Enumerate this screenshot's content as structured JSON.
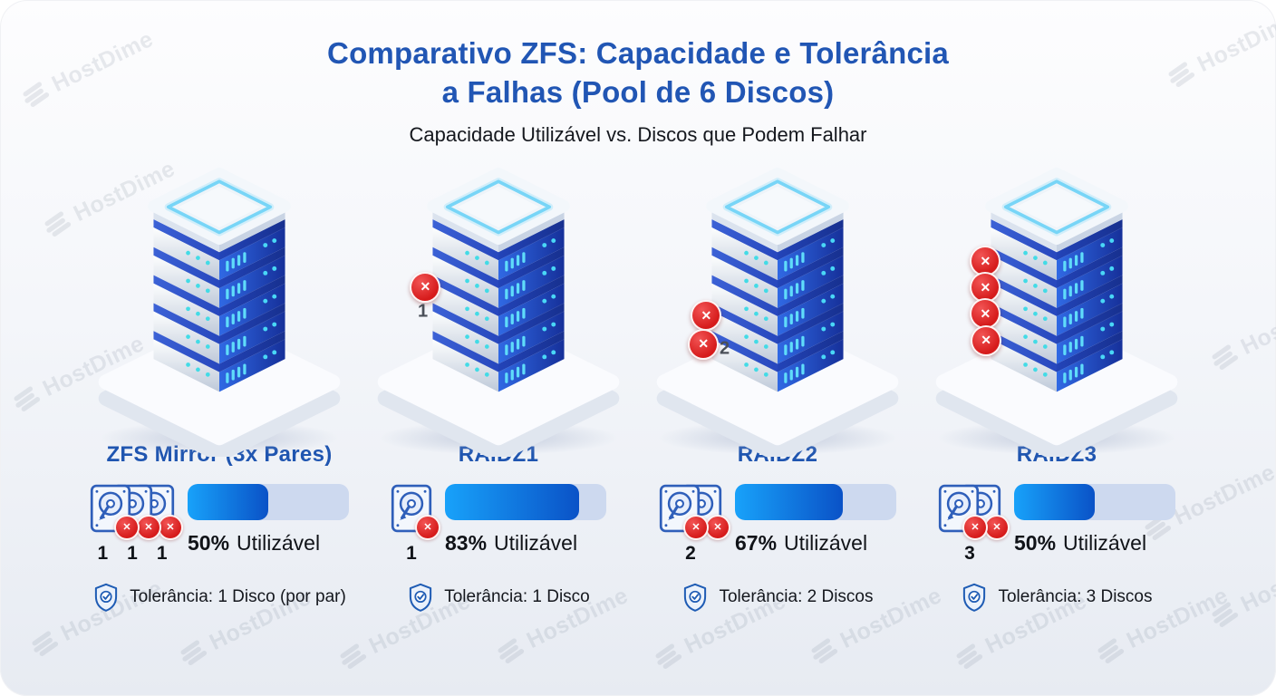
{
  "title": {
    "line1": "Comparativo ZFS: Capacidade e Tolerância",
    "line2": "a Falhas (Pool de 6 Discos)",
    "full": "Comparativo ZFS: Capacidade e Tolerância a Falhas (Pool de 6 Discos)"
  },
  "subtitle": "Capacidade Utilizável vs. Discos que Podem Falhar",
  "watermark": {
    "text": "HostDime"
  },
  "colors": {
    "title_blue": "#2156b4",
    "label_blue": "#1f55b0",
    "bar_fill_start": "#18a2fa",
    "bar_fill_end": "#0a52c7",
    "bar_track": "#cdd9ef",
    "failure_red": "#d61b1b",
    "icon_outline_blue": "#2f5fba"
  },
  "chart_data": {
    "type": "bar",
    "title": "Comparativo ZFS: Capacidade e Tolerância a Falhas (Pool de 6 Discos)",
    "subtitle": "Capacidade Utilizável vs. Discos que Podem Falhar",
    "categories": [
      "ZFS Mirror (3x Pares)",
      "RAIDZ1",
      "RAIDZ2",
      "RAIDZ3"
    ],
    "series": [
      {
        "name": "Capacidade Utilizável (%)",
        "values": [
          50,
          83,
          67,
          50
        ]
      },
      {
        "name": "Discos que Podem Falhar",
        "values": [
          1,
          1,
          2,
          3
        ]
      }
    ],
    "value_labels": [
      "50% Utilizável",
      "83% Utilizável",
      "67% Utilizável",
      "50% Utilizável"
    ],
    "ylim": [
      0,
      100
    ],
    "legend": false,
    "grid": false
  },
  "columns": [
    {
      "id": "zfs-mirror",
      "label": "ZFS Mirror (3x Pares)",
      "capacity_pct": 50,
      "capacity_value": "50%",
      "capacity_suffix": "Utilizável",
      "tolerance": "Tolerância: 1 Disco (por par)",
      "fail_counts": [
        "1",
        "1",
        "1"
      ],
      "stack_failed_markers": 0,
      "stack_marker_label": ""
    },
    {
      "id": "raidz1",
      "label": "RAIDZ1",
      "capacity_pct": 83,
      "capacity_value": "83%",
      "capacity_suffix": "Utilizável",
      "tolerance": "Tolerância: 1 Disco",
      "fail_counts": [
        "1"
      ],
      "stack_failed_markers": 1,
      "stack_marker_label": "1"
    },
    {
      "id": "raidz2",
      "label": "RAIDZ2",
      "capacity_pct": 67,
      "capacity_value": "67%",
      "capacity_suffix": "Utilizável",
      "tolerance": "Tolerância: 2 Discos",
      "fail_counts": [
        "2"
      ],
      "stack_failed_markers": 2,
      "stack_marker_label": "2"
    },
    {
      "id": "raidz3",
      "label": "RAIDZ3",
      "capacity_pct": 50,
      "capacity_value": "50%",
      "capacity_suffix": "Utilizável",
      "tolerance": "Tolerância: 3 Discos",
      "fail_counts": [
        "3"
      ],
      "stack_failed_markers": 4,
      "stack_marker_label": ""
    }
  ]
}
